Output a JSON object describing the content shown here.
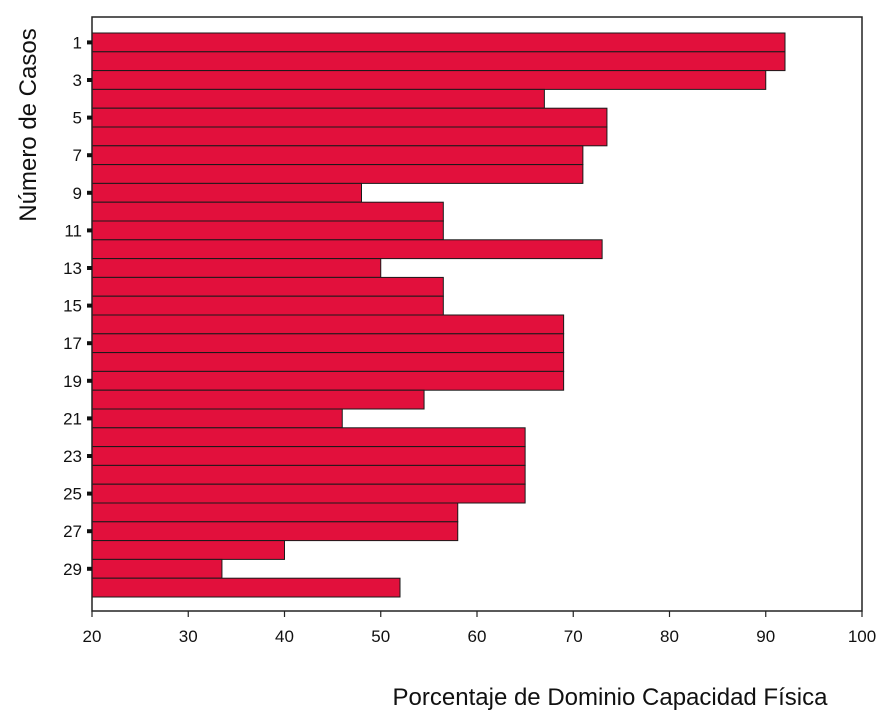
{
  "chart_data": {
    "type": "bar",
    "orientation": "horizontal",
    "xlabel": "Porcentaje de Dominio Capacidad Física",
    "ylabel": "Número de Casos",
    "xlim": [
      20,
      100
    ],
    "x_ticks": [
      20,
      30,
      40,
      50,
      60,
      70,
      80,
      90,
      100
    ],
    "y_tick_labels": [
      "1",
      "3",
      "5",
      "7",
      "9",
      "11",
      "13",
      "15",
      "17",
      "19",
      "21",
      "23",
      "25",
      "27",
      "29"
    ],
    "categories": [
      "1",
      "2",
      "3",
      "4",
      "5",
      "6",
      "7",
      "8",
      "9",
      "10",
      "11",
      "12",
      "13",
      "14",
      "15",
      "16",
      "17",
      "18",
      "19",
      "20",
      "21",
      "22",
      "23",
      "24",
      "25",
      "26",
      "27",
      "28",
      "29",
      "30"
    ],
    "values": [
      92,
      92,
      90,
      67,
      73.5,
      73.5,
      71,
      71,
      48,
      56.5,
      56.5,
      73,
      50,
      56.5,
      56.5,
      69,
      69,
      69,
      69,
      54.5,
      46,
      65,
      65,
      65,
      65,
      58,
      58,
      40,
      33.5,
      52
    ],
    "bar_color": "#e2103c",
    "grid": false
  }
}
